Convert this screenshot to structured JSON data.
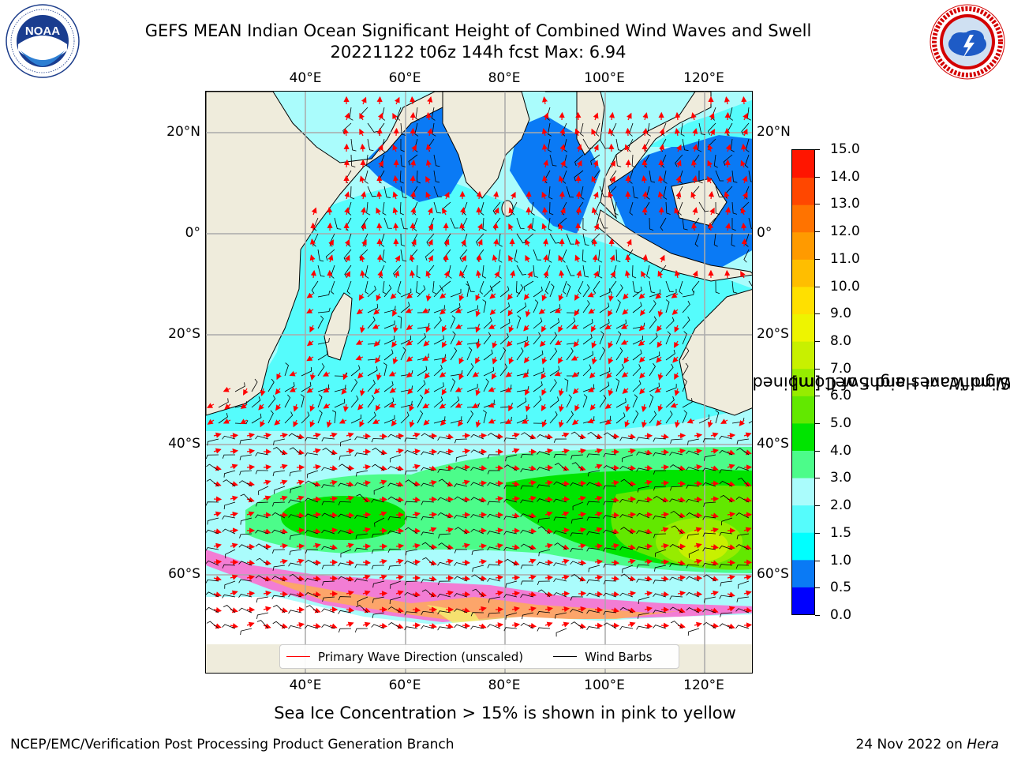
{
  "header": {
    "title_line1": "GEFS MEAN Indian Ocean Significant Height of Combined Wind Waves and Swell",
    "title_line2": "20221122 t06z 144h fcst   Max: 6.94"
  },
  "logos": {
    "left": {
      "icon": "noaa-logo-icon",
      "text": "NOAA",
      "ring_text": "NATIONAL OCEANIC AND ATMOSPHERIC ADMINISTRATION · U.S. DEPARTMENT OF COMMERCE"
    },
    "right": {
      "icon": "national-weather-service-logo-icon",
      "ring_text": "NATIONAL WEATHER SERVICE"
    }
  },
  "map": {
    "region": "Indian Ocean",
    "lon_ticks_top": [
      "40°E",
      "60°E",
      "80°E",
      "100°E",
      "120°E"
    ],
    "lon_ticks_bottom": [
      "40°E",
      "60°E",
      "80°E",
      "100°E",
      "120°E"
    ],
    "lat_ticks_left": [
      "20°N",
      "0°",
      "20°S",
      "40°S",
      "60°S"
    ],
    "lat_ticks_right": [
      "20°N",
      "0°",
      "20°S",
      "40°S",
      "60°S"
    ],
    "land_color": "#efecdc",
    "grid": true
  },
  "colorbar": {
    "label_line1": "Significant Height of Combined",
    "label_line2": "Wind Waves and Swell [m]",
    "ticks": [
      "0.0",
      "0.5",
      "1.0",
      "1.5",
      "2.0",
      "3.0",
      "4.0",
      "5.0",
      "6.0",
      "7.0",
      "8.0",
      "9.0",
      "10.0",
      "11.0",
      "12.0",
      "13.0",
      "14.0",
      "15.0"
    ],
    "colors": [
      "#0000ff",
      "#0a7af5",
      "#00ffff",
      "#55fcfc",
      "#aafcfc",
      "#4cfc8a",
      "#00e400",
      "#62e800",
      "#96ec00",
      "#c8f000",
      "#eef400",
      "#ffe000",
      "#ffbe00",
      "#ff9a00",
      "#ff7300",
      "#ff4700",
      "#ff1500"
    ]
  },
  "legend": {
    "wave_label": "Primary Wave Direction (unscaled)",
    "wave_color": "#ff0000",
    "wind_label": "Wind Barbs",
    "wind_color": "#000000"
  },
  "footer": {
    "sea_ice_note": "Sea Ice Concentration > 15% is shown in pink to yellow",
    "branch": "NCEP/EMC/Verification Post Processing Product Generation Branch",
    "date": "24 Nov 2022 on ",
    "host": "Hera"
  }
}
